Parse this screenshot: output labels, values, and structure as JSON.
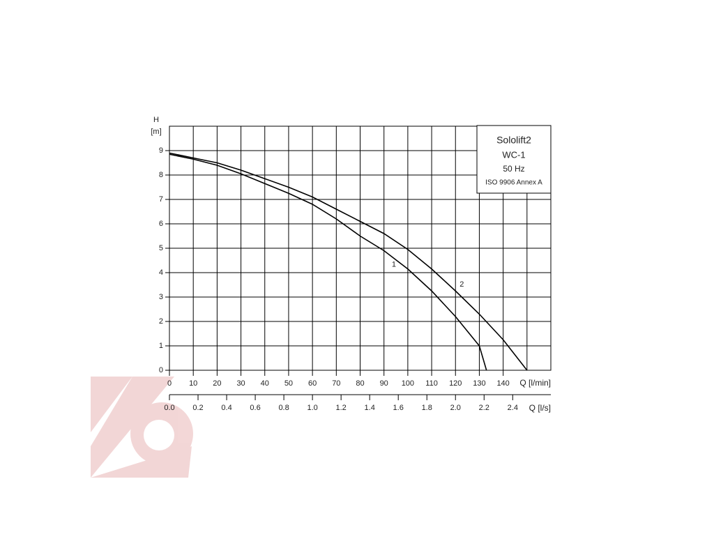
{
  "chart_data": {
    "type": "line",
    "y_label_top": "H",
    "y_label": "[m]",
    "x_label": "Q [l/min]",
    "x2_label": "Q [l/s]",
    "legend_box": [
      "Sololift2",
      "WC-1",
      "50 Hz",
      "ISO 9906 Annex A"
    ],
    "xlim": [
      0,
      160
    ],
    "xticks": [
      0,
      10,
      20,
      30,
      40,
      50,
      60,
      70,
      80,
      90,
      100,
      110,
      120,
      130,
      140
    ],
    "x2lim": [
      0,
      2.6667
    ],
    "x2ticks": [
      {
        "value": 0,
        "label": "0.0"
      },
      0.2,
      0.4,
      0.6,
      0.8,
      {
        "value": 1,
        "label": "1.0"
      },
      1.2,
      1.4,
      1.6,
      1.8,
      {
        "value": 2,
        "label": "2.0"
      },
      2.2,
      2.4
    ],
    "ylim": [
      0,
      10
    ],
    "yticks": [
      0,
      1,
      2,
      3,
      4,
      5,
      6,
      7,
      8,
      9
    ],
    "grid": true,
    "series": [
      {
        "name": "1",
        "color": "#000000",
        "x": [
          0,
          10,
          20,
          30,
          40,
          50,
          60,
          70,
          80,
          90,
          100,
          110,
          120,
          130,
          133
        ],
        "values": [
          8.85,
          8.65,
          8.4,
          8.05,
          7.65,
          7.25,
          6.8,
          6.2,
          5.5,
          4.9,
          4.15,
          3.25,
          2.2,
          1.0,
          0
        ]
      },
      {
        "name": "2",
        "color": "#000000",
        "x": [
          0,
          10,
          20,
          30,
          40,
          50,
          60,
          70,
          80,
          90,
          100,
          110,
          120,
          130,
          140,
          150
        ],
        "values": [
          8.9,
          8.7,
          8.5,
          8.2,
          7.85,
          7.5,
          7.1,
          6.6,
          6.1,
          5.6,
          4.95,
          4.15,
          3.25,
          2.3,
          1.25,
          0
        ]
      }
    ]
  }
}
